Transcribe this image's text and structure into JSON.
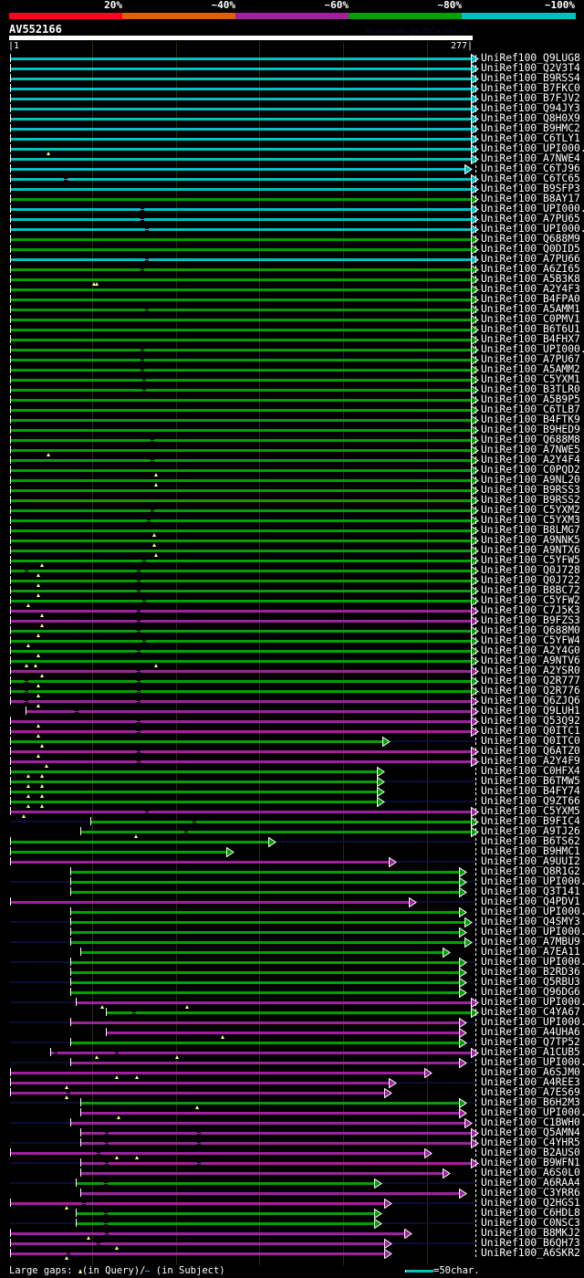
{
  "header": {
    "scale_labels": [
      "20%",
      "~40%",
      "~60%",
      "~80%",
      "~100%"
    ],
    "scale_colors": [
      "#ff0020",
      "#e06000",
      "#a020a0",
      "#00a000",
      "#00c0c0"
    ],
    "query_id": "AV552166",
    "version": "AlignView.pm Beta rel.7",
    "start_label": "|1",
    "end_label": "277|"
  },
  "query_length": 277,
  "grid_positions": [
    50,
    100,
    150,
    200,
    250
  ],
  "colors": {
    "c": "#00c0c0",
    "g": "#00a000",
    "m": "#a020a0"
  },
  "rows": [
    {
      "l": "UniRef100_Q9LUG8",
      "c": "c",
      "s": 1,
      "e": 277,
      "g": [],
      "m": [],
      "x": "R"
    },
    {
      "l": "UniRef100_Q2V3T4",
      "c": "c",
      "s": 1,
      "e": 277,
      "g": [],
      "m": [],
      "x": ""
    },
    {
      "l": "UniRef100_B9RSS4",
      "c": "c",
      "s": 1,
      "e": 277,
      "g": [],
      "m": [],
      "x": "R"
    },
    {
      "l": "UniRef100_B7FKC0",
      "c": "c",
      "s": 1,
      "e": 277,
      "g": [],
      "m": [],
      "x": ""
    },
    {
      "l": "UniRef100_B7FJV2",
      "c": "c",
      "s": 1,
      "e": 277,
      "g": [],
      "m": [],
      "x": "R"
    },
    {
      "l": "UniRef100_Q94JY3",
      "c": "c",
      "s": 1,
      "e": 277,
      "g": [],
      "m": [],
      "x": ""
    },
    {
      "l": "UniRef100_Q8H0X9",
      "c": "c",
      "s": 1,
      "e": 277,
      "g": [],
      "m": [],
      "x": ""
    },
    {
      "l": "UniRef100_B9HMC2",
      "c": "c",
      "s": 1,
      "e": 277,
      "g": [],
      "m": [],
      "x": "R"
    },
    {
      "l": "UniRef100_C6TLY1",
      "c": "c",
      "s": 1,
      "e": 277,
      "g": [],
      "m": [],
      "x": ""
    },
    {
      "l": "UniRef100_UPI000..",
      "c": "c",
      "s": 1,
      "e": 277,
      "g": [],
      "m": [
        24
      ],
      "x": ""
    },
    {
      "l": "UniRef100_A7NWE4",
      "c": "c",
      "s": 1,
      "e": 277,
      "g": [],
      "m": [],
      "x": "R"
    },
    {
      "l": "UniRef100_C6TJ96",
      "c": "c",
      "s": 1,
      "e": 273,
      "g": [],
      "m": [],
      "x": ""
    },
    {
      "l": "UniRef100_C6TC65",
      "c": "c",
      "s": 1,
      "e": 277,
      "g": [
        34
      ],
      "m": [],
      "x": "R"
    },
    {
      "l": "UniRef100_B9SFP3",
      "c": "c",
      "s": 1,
      "e": 277,
      "g": [],
      "m": [],
      "x": ""
    },
    {
      "l": "UniRef100_B8AY17",
      "c": "g",
      "s": 1,
      "e": 277,
      "g": [],
      "m": [],
      "x": "R"
    },
    {
      "l": "UniRef100_UPI000..",
      "c": "c",
      "s": 1,
      "e": 277,
      "g": [
        80
      ],
      "m": [],
      "x": ""
    },
    {
      "l": "UniRef100_A7PU65",
      "c": "c",
      "s": 1,
      "e": 277,
      "g": [
        80
      ],
      "m": [],
      "x": "R"
    },
    {
      "l": "UniRef100_UPI000..",
      "c": "c",
      "s": 1,
      "e": 277,
      "g": [
        83
      ],
      "m": [],
      "x": ""
    },
    {
      "l": "UniRef100_Q688M9",
      "c": "g",
      "s": 1,
      "e": 277,
      "g": [],
      "m": [],
      "x": "R"
    },
    {
      "l": "UniRef100_Q0DID5",
      "c": "g",
      "s": 1,
      "e": 277,
      "g": [],
      "m": [],
      "x": ""
    },
    {
      "l": "UniRef100_A7PU66",
      "c": "c",
      "s": 1,
      "e": 277,
      "g": [
        83
      ],
      "m": [],
      "x": "R"
    },
    {
      "l": "UniRef100_A6ZI65",
      "c": "g",
      "s": 1,
      "e": 277,
      "g": [
        80
      ],
      "m": [],
      "x": ""
    },
    {
      "l": "UniRef100_A5B3K8",
      "c": "g",
      "s": 1,
      "e": 277,
      "g": [],
      "m": [
        51,
        53
      ],
      "x": "R"
    },
    {
      "l": "UniRef100_A2Y4F3",
      "c": "g",
      "s": 1,
      "e": 277,
      "g": [],
      "m": [],
      "x": ""
    },
    {
      "l": "UniRef100_B4FPA0",
      "c": "g",
      "s": 1,
      "e": 277,
      "g": [],
      "m": [],
      "x": "R"
    },
    {
      "l": "UniRef100_A5AMM1",
      "c": "g",
      "s": 1,
      "e": 277,
      "g": [
        83
      ],
      "m": [],
      "x": ""
    },
    {
      "l": "UniRef100_C0PMV1",
      "c": "g",
      "s": 1,
      "e": 277,
      "g": [],
      "m": [],
      "x": "R"
    },
    {
      "l": "UniRef100_B6T6U1",
      "c": "g",
      "s": 1,
      "e": 277,
      "g": [],
      "m": [],
      "x": ""
    },
    {
      "l": "UniRef100_B4FHX7",
      "c": "g",
      "s": 1,
      "e": 277,
      "g": [],
      "m": [],
      "x": "R"
    },
    {
      "l": "UniRef100_UPI000..",
      "c": "g",
      "s": 1,
      "e": 277,
      "g": [
        80
      ],
      "m": [],
      "x": ""
    },
    {
      "l": "UniRef100_A7PU67",
      "c": "g",
      "s": 1,
      "e": 277,
      "g": [
        80
      ],
      "m": [],
      "x": "R"
    },
    {
      "l": "UniRef100_A5AMM2",
      "c": "g",
      "s": 1,
      "e": 277,
      "g": [
        80
      ],
      "m": [],
      "x": ""
    },
    {
      "l": "UniRef100_C5YXM1",
      "c": "g",
      "s": 1,
      "e": 277,
      "g": [
        81
      ],
      "m": [],
      "x": "R"
    },
    {
      "l": "UniRef100_B3TLR0",
      "c": "g",
      "s": 1,
      "e": 277,
      "g": [
        81
      ],
      "m": [],
      "x": ""
    },
    {
      "l": "UniRef100_A5B9P5",
      "c": "g",
      "s": 1,
      "e": 277,
      "g": [],
      "m": [],
      "x": "R"
    },
    {
      "l": "UniRef100_C6TLB7",
      "c": "g",
      "s": 1,
      "e": 277,
      "g": [],
      "m": [],
      "x": ""
    },
    {
      "l": "UniRef100_B4FTK9",
      "c": "g",
      "s": 1,
      "e": 277,
      "g": [],
      "m": [],
      "x": "R"
    },
    {
      "l": "UniRef100_B9HED9",
      "c": "g",
      "s": 1,
      "e": 277,
      "g": [],
      "m": [],
      "x": ""
    },
    {
      "l": "UniRef100_Q688M8",
      "c": "g",
      "s": 1,
      "e": 277,
      "g": [
        86
      ],
      "m": [],
      "x": "R"
    },
    {
      "l": "UniRef100_A7NWE5",
      "c": "g",
      "s": 1,
      "e": 277,
      "g": [],
      "m": [
        24
      ],
      "x": ""
    },
    {
      "l": "UniRef100_A2Y4F4",
      "c": "g",
      "s": 1,
      "e": 277,
      "g": [
        86
      ],
      "m": [],
      "x": "R"
    },
    {
      "l": "UniRef100_C0PQD2",
      "c": "g",
      "s": 1,
      "e": 277,
      "g": [],
      "m": [
        88
      ],
      "x": ""
    },
    {
      "l": "UniRef100_A9NL20",
      "c": "g",
      "s": 1,
      "e": 277,
      "g": [],
      "m": [
        88
      ],
      "x": "R"
    },
    {
      "l": "UniRef100_B9RSS3",
      "c": "g",
      "s": 1,
      "e": 277,
      "g": [],
      "m": [],
      "x": ""
    },
    {
      "l": "UniRef100_B9RSS2",
      "c": "g",
      "s": 1,
      "e": 277,
      "g": [],
      "m": [],
      "x": "R"
    },
    {
      "l": "UniRef100_C5YXM2",
      "c": "g",
      "s": 1,
      "e": 277,
      "g": [
        86
      ],
      "m": [],
      "x": ""
    },
    {
      "l": "UniRef100_C5YXM3",
      "c": "g",
      "s": 1,
      "e": 277,
      "g": [
        84
      ],
      "m": [],
      "x": "R"
    },
    {
      "l": "UniRef100_B8LMG7",
      "c": "g",
      "s": 1,
      "e": 277,
      "g": [],
      "m": [
        87
      ],
      "x": ""
    },
    {
      "l": "UniRef100_A9NNK5",
      "c": "g",
      "s": 1,
      "e": 277,
      "g": [],
      "m": [
        87
      ],
      "x": "R"
    },
    {
      "l": "UniRef100_A9NTX6",
      "c": "g",
      "s": 1,
      "e": 277,
      "g": [],
      "m": [
        88
      ],
      "x": ""
    },
    {
      "l": "UniRef100_C5YFW5",
      "c": "g",
      "s": 1,
      "e": 277,
      "g": [
        81
      ],
      "m": [
        20
      ],
      "x": "R"
    },
    {
      "l": "UniRef100_Q0J728",
      "c": "g",
      "s": 1,
      "e": 277,
      "g": [
        11,
        78
      ],
      "m": [
        18
      ],
      "x": ""
    },
    {
      "l": "UniRef100_Q0J722",
      "c": "g",
      "s": 1,
      "e": 277,
      "g": [
        78
      ],
      "m": [
        18
      ],
      "x": "R"
    },
    {
      "l": "UniRef100_B8BC72",
      "c": "g",
      "s": 1,
      "e": 277,
      "g": [
        78
      ],
      "m": [
        18
      ],
      "x": ""
    },
    {
      "l": "UniRef100_C5YFW2",
      "c": "g",
      "s": 1,
      "e": 277,
      "g": [
        81
      ],
      "m": [
        12
      ],
      "x": "R"
    },
    {
      "l": "UniRef100_C7J5K3",
      "c": "m",
      "s": 1,
      "e": 277,
      "g": [
        78
      ],
      "m": [
        20
      ],
      "x": ""
    },
    {
      "l": "UniRef100_B9FZS3",
      "c": "m",
      "s": 1,
      "e": 277,
      "g": [
        78
      ],
      "m": [
        20
      ],
      "x": "R"
    },
    {
      "l": "UniRef100_Q688M0",
      "c": "g",
      "s": 1,
      "e": 277,
      "g": [
        78
      ],
      "m": [
        18
      ],
      "x": ""
    },
    {
      "l": "UniRef100_C5YFW4",
      "c": "g",
      "s": 1,
      "e": 277,
      "g": [
        81
      ],
      "m": [
        12
      ],
      "x": "R"
    },
    {
      "l": "UniRef100_A2Y4G0",
      "c": "g",
      "s": 1,
      "e": 277,
      "g": [
        78
      ],
      "m": [
        18
      ],
      "x": ""
    },
    {
      "l": "UniRef100_A9NTV6",
      "c": "g",
      "s": 1,
      "e": 277,
      "g": [],
      "m": [
        11,
        16,
        88
      ],
      "x": "R"
    },
    {
      "l": "UniRef100_A2YSR0",
      "c": "m",
      "s": 1,
      "e": 277,
      "g": [
        78
      ],
      "m": [
        20
      ],
      "x": ""
    },
    {
      "l": "UniRef100_Q2R777",
      "c": "g",
      "s": 1,
      "e": 277,
      "g": [
        11,
        78
      ],
      "m": [
        18
      ],
      "x": "R"
    },
    {
      "l": "UniRef100_Q2R776",
      "c": "g",
      "s": 1,
      "e": 277,
      "g": [
        11,
        78
      ],
      "m": [
        18
      ],
      "x": ""
    },
    {
      "l": "UniRef100_Q6ZJQ6",
      "c": "m",
      "s": 1,
      "e": 277,
      "g": [
        11,
        78
      ],
      "m": [
        18
      ],
      "x": "R"
    },
    {
      "l": "UniRef100_Q9LUH1",
      "c": "m",
      "s": 10,
      "e": 277,
      "g": [
        41
      ],
      "m": [],
      "x": ""
    },
    {
      "l": "UniRef100_Q53Q92",
      "c": "m",
      "s": 1,
      "e": 277,
      "g": [
        78
      ],
      "m": [
        18
      ],
      "x": "R"
    },
    {
      "l": "UniRef100_Q0ITC1",
      "c": "m",
      "s": 1,
      "e": 277,
      "g": [
        78
      ],
      "m": [
        18
      ],
      "x": ""
    },
    {
      "l": "UniRef100_Q0ITC0",
      "c": "g",
      "s": 1,
      "e": 224,
      "g": [],
      "m": [
        20
      ],
      "x": "R"
    },
    {
      "l": "UniRef100_Q6ATZ0",
      "c": "m",
      "s": 1,
      "e": 277,
      "g": [
        78
      ],
      "m": [
        18
      ],
      "x": ""
    },
    {
      "l": "UniRef100_A2Y4F9",
      "c": "m",
      "s": 1,
      "e": 277,
      "g": [
        78
      ],
      "m": [
        23
      ],
      "x": "R"
    },
    {
      "l": "UniRef100_C0HFX4",
      "c": "g",
      "s": 1,
      "e": 221,
      "g": [],
      "m": [
        12,
        20
      ],
      "x": ""
    },
    {
      "l": "UniRef100_B6TMW5",
      "c": "g",
      "s": 1,
      "e": 221,
      "g": [],
      "m": [
        12,
        20
      ],
      "x": "R"
    },
    {
      "l": "UniRef100_B4FY74",
      "c": "g",
      "s": 1,
      "e": 221,
      "g": [],
      "m": [
        12,
        20
      ],
      "x": ""
    },
    {
      "l": "UniRef100_Q9ZT66",
      "c": "g",
      "s": 1,
      "e": 221,
      "g": [],
      "m": [
        12,
        20
      ],
      "x": "R"
    },
    {
      "l": "UniRef100_C5YXM5",
      "c": "m",
      "s": 1,
      "e": 277,
      "g": [
        83
      ],
      "m": [
        9
      ],
      "x": ""
    },
    {
      "l": "UniRef100_B9FIC4",
      "c": "g",
      "s": 49,
      "e": 277,
      "g": [
        111
      ],
      "m": [],
      "x": "LR"
    },
    {
      "l": "UniRef100_A9TJ26",
      "c": "g",
      "s": 43,
      "e": 277,
      "g": [
        106
      ],
      "m": [
        76
      ],
      "x": ""
    },
    {
      "l": "UniRef100_B6TS62",
      "c": "g",
      "s": 1,
      "e": 156,
      "g": [],
      "m": [],
      "x": "R"
    },
    {
      "l": "UniRef100_B9HMC1",
      "c": "g",
      "s": 1,
      "e": 131,
      "g": [],
      "m": [],
      "x": ""
    },
    {
      "l": "UniRef100_A9UUI2",
      "c": "m",
      "s": 1,
      "e": 228,
      "g": [],
      "m": [],
      "x": "R"
    },
    {
      "l": "UniRef100_Q8R1G2",
      "c": "g",
      "s": 37,
      "e": 270,
      "g": [],
      "m": [],
      "x": ""
    },
    {
      "l": "UniRef100_UPI000..",
      "c": "g",
      "s": 37,
      "e": 270,
      "g": [],
      "m": [],
      "x": "LR"
    },
    {
      "l": "UniRef100_Q3T141",
      "c": "g",
      "s": 37,
      "e": 270,
      "g": [],
      "m": [],
      "x": ""
    },
    {
      "l": "UniRef100_Q4PDV1",
      "c": "m",
      "s": 1,
      "e": 240,
      "g": [],
      "m": [],
      "x": "R"
    },
    {
      "l": "UniRef100_UPI000..",
      "c": "g",
      "s": 37,
      "e": 270,
      "g": [],
      "m": [],
      "x": ""
    },
    {
      "l": "UniRef100_Q4SMY3",
      "c": "g",
      "s": 37,
      "e": 273,
      "g": [],
      "m": [],
      "x": "LR"
    },
    {
      "l": "UniRef100_UPI000..",
      "c": "g",
      "s": 37,
      "e": 270,
      "g": [],
      "m": [],
      "x": ""
    },
    {
      "l": "UniRef100_A7MBU9",
      "c": "g",
      "s": 37,
      "e": 273,
      "g": [],
      "m": [],
      "x": "LR"
    },
    {
      "l": "UniRef100_A7EA11",
      "c": "g",
      "s": 43,
      "e": 260,
      "g": [],
      "m": [],
      "x": ""
    },
    {
      "l": "UniRef100_UPI000..",
      "c": "g",
      "s": 37,
      "e": 270,
      "g": [],
      "m": [],
      "x": "LR"
    },
    {
      "l": "UniRef100_B2RD36",
      "c": "g",
      "s": 37,
      "e": 270,
      "g": [],
      "m": [],
      "x": ""
    },
    {
      "l": "UniRef100_Q5RBU3",
      "c": "g",
      "s": 37,
      "e": 270,
      "g": [],
      "m": [],
      "x": "LR"
    },
    {
      "l": "UniRef100_Q96DG6",
      "c": "g",
      "s": 37,
      "e": 270,
      "g": [],
      "m": [],
      "x": ""
    },
    {
      "l": "UniRef100_UPI000..",
      "c": "m",
      "s": 40,
      "e": 277,
      "g": [],
      "m": [
        56,
        107
      ],
      "x": "LR"
    },
    {
      "l": "UniRef100_C4YA67",
      "c": "g",
      "s": 58,
      "e": 277,
      "g": [
        75
      ],
      "m": [],
      "x": ""
    },
    {
      "l": "UniRef100_UPI000..",
      "c": "m",
      "s": 37,
      "e": 270,
      "g": [],
      "m": [],
      "x": "LR"
    },
    {
      "l": "UniRef100_A4UHA6",
      "c": "m",
      "s": 58,
      "e": 270,
      "g": [],
      "m": [
        128
      ],
      "x": ""
    },
    {
      "l": "UniRef100_Q7TP52",
      "c": "g",
      "s": 37,
      "e": 270,
      "g": [],
      "m": [],
      "x": "LR"
    },
    {
      "l": "UniRef100_A1CUB5",
      "c": "m",
      "s": 25,
      "e": 277,
      "g": [
        28,
        65
      ],
      "m": [
        53,
        101
      ],
      "x": ""
    },
    {
      "l": "UniRef100_UPI000..",
      "c": "m",
      "s": 37,
      "e": 270,
      "g": [],
      "m": [],
      "x": "LR"
    },
    {
      "l": "UniRef100_A6SJM0",
      "c": "m",
      "s": 1,
      "e": 249,
      "g": [],
      "m": [
        65,
        77
      ],
      "x": ""
    },
    {
      "l": "UniRef100_A4REE3",
      "c": "m",
      "s": 1,
      "e": 228,
      "g": [],
      "m": [
        35
      ],
      "x": "R"
    },
    {
      "l": "UniRef100_A7ES69",
      "c": "m",
      "s": 1,
      "e": 225,
      "g": [
        36
      ],
      "m": [
        35
      ],
      "x": ""
    },
    {
      "l": "UniRef100_B6H2M3",
      "c": "g",
      "s": 43,
      "e": 270,
      "g": [],
      "m": [
        113
      ],
      "x": "LR"
    },
    {
      "l": "UniRef100_UPI000..",
      "c": "m",
      "s": 43,
      "e": 270,
      "g": [],
      "m": [
        66
      ],
      "x": ""
    },
    {
      "l": "UniRef100_C1BWH0",
      "c": "m",
      "s": 37,
      "e": 273,
      "g": [],
      "m": [],
      "x": "LR"
    },
    {
      "l": "UniRef100_Q5AMN4",
      "c": "m",
      "s": 43,
      "e": 277,
      "g": [
        59,
        114
      ],
      "m": [],
      "x": ""
    },
    {
      "l": "UniRef100_C4YHR5",
      "c": "m",
      "s": 43,
      "e": 277,
      "g": [
        59,
        114
      ],
      "m": [],
      "x": "LR"
    },
    {
      "l": "UniRef100_B2AUS0",
      "c": "m",
      "s": 1,
      "e": 249,
      "g": [
        54
      ],
      "m": [
        65,
        77
      ],
      "x": ""
    },
    {
      "l": "UniRef100_B9WFN1",
      "c": "m",
      "s": 43,
      "e": 277,
      "g": [
        59,
        114
      ],
      "m": [],
      "x": "LR"
    },
    {
      "l": "UniRef100_A6S0L0",
      "c": "m",
      "s": 43,
      "e": 260,
      "g": [],
      "m": [],
      "x": ""
    },
    {
      "l": "UniRef100_A6RAA4",
      "c": "g",
      "s": 40,
      "e": 219,
      "g": [
        58
      ],
      "m": [],
      "x": "LR"
    },
    {
      "l": "UniRef100_C3YRR6",
      "c": "m",
      "s": 43,
      "e": 270,
      "g": [],
      "m": [],
      "x": ""
    },
    {
      "l": "UniRef100_Q2HGS1",
      "c": "m",
      "s": 1,
      "e": 225,
      "g": [
        45
      ],
      "m": [
        35
      ],
      "x": "R"
    },
    {
      "l": "UniRef100_C6HDL8",
      "c": "g",
      "s": 40,
      "e": 219,
      "g": [
        58
      ],
      "m": [],
      "x": ""
    },
    {
      "l": "UniRef100_C0NSC3",
      "c": "g",
      "s": 40,
      "e": 219,
      "g": [
        58
      ],
      "m": [],
      "x": "LR"
    },
    {
      "l": "UniRef100_B8MKJ2",
      "c": "m",
      "s": 1,
      "e": 237,
      "g": [
        59
      ],
      "m": [
        48
      ],
      "x": ""
    },
    {
      "l": "UniRef100_B6QH73",
      "c": "m",
      "s": 1,
      "e": 225,
      "g": [
        54
      ],
      "m": [
        65
      ],
      "x": "R"
    },
    {
      "l": "UniRef100_A6SKR2",
      "c": "m",
      "s": 1,
      "e": 225,
      "g": [
        36
      ],
      "m": [
        35
      ],
      "x": ""
    }
  ],
  "legend": {
    "prefix": "Large gaps:",
    "query_text": "(in Query)/",
    "subject_text": "(in Subject)",
    "scale_text": "=50char."
  }
}
